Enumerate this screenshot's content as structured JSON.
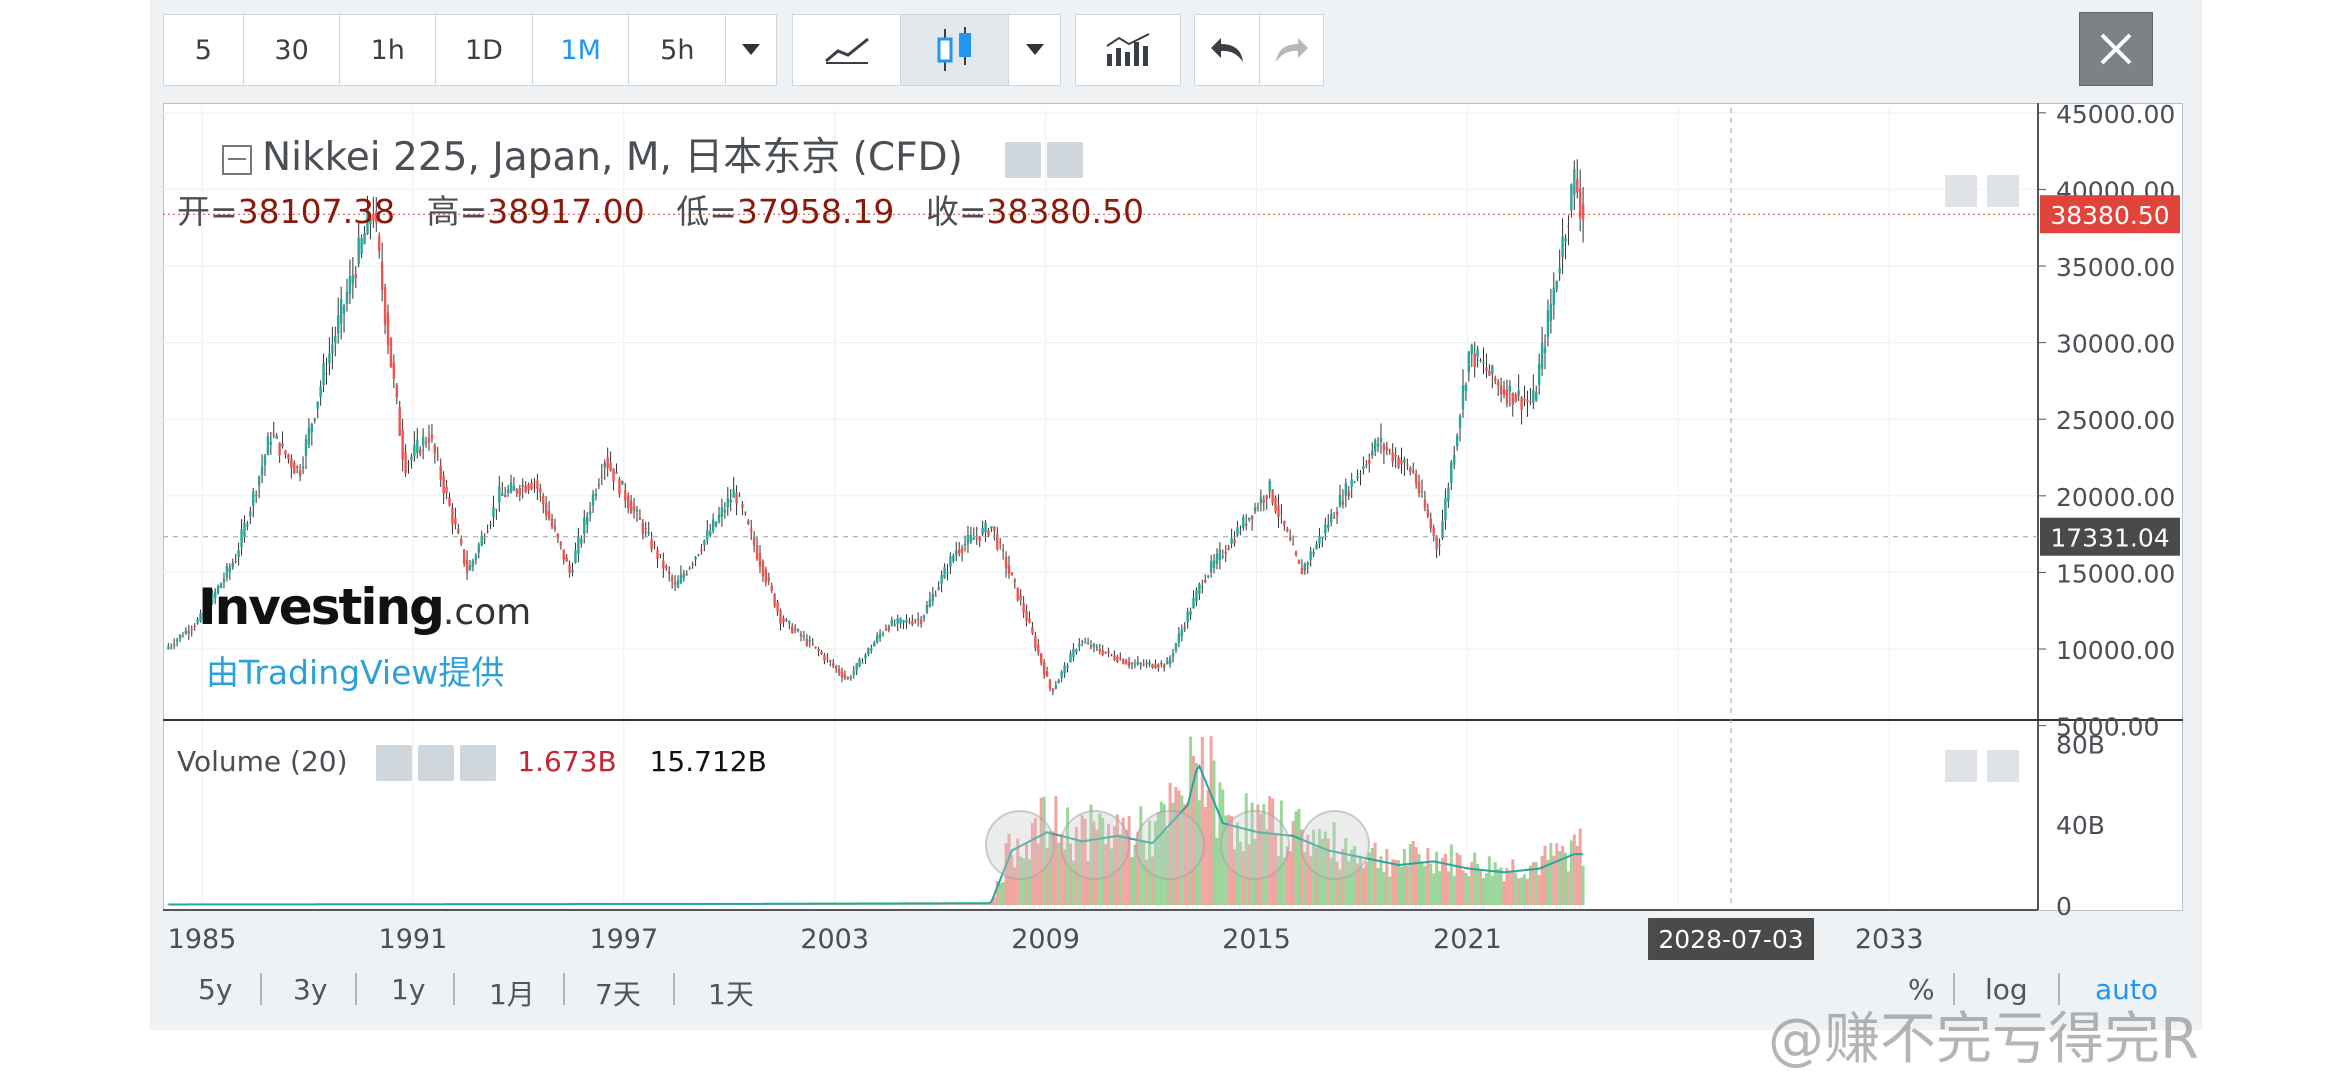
{
  "toolbar": {
    "intervals": [
      "5",
      "30",
      "1h",
      "1D",
      "1M",
      "5h"
    ],
    "active_interval": "1M"
  },
  "legend": {
    "title": "Nikkei 225, Japan, M, 日本东京 (CFD)",
    "open_label": "开=",
    "open": "38107.38",
    "high_label": "高=",
    "high": "38917.00",
    "low_label": "低=",
    "low": "37958.19",
    "close_label": "收=",
    "close": "38380.50"
  },
  "volume_legend": {
    "title": "Volume (20)",
    "value1": "1.673B",
    "value2": "15.712B"
  },
  "branding": {
    "logo_main": "Investing",
    "logo_suffix": ".com",
    "provider": "由TradingView提供"
  },
  "price_badges": {
    "last": "38380.50",
    "crosshair": "17331.04"
  },
  "crosshair_date": "2028-07-03",
  "range_buttons": [
    "5y",
    "3y",
    "1y",
    "1月",
    "7天",
    "1天"
  ],
  "scale_options": [
    "%",
    "log",
    "auto"
  ],
  "watermark": "@赚不完亏得完R",
  "colors": {
    "up": "#26a69a",
    "down": "#ef5350",
    "badge_last": "#e0443a",
    "badge_cross": "#4a4a4a",
    "active": "#2196f3"
  },
  "chart_data": {
    "type": "candlestick",
    "title": "Nikkei 225, Japan, M, 日本东京 (CFD)",
    "x_ticks": [
      "1985",
      "1991",
      "1997",
      "2003",
      "2009",
      "2015",
      "2021",
      "2033"
    ],
    "y_ticks": [
      "45000.00",
      "40000.00",
      "35000.00",
      "30000.00",
      "25000.00",
      "20000.00",
      "15000.00",
      "10000.00",
      "5000.00"
    ],
    "ylim": [
      5000,
      45000
    ],
    "series": [
      {
        "name": "Nikkei 225",
        "points": [
          {
            "x": 1984.0,
            "y": 10000
          },
          {
            "x": 1985.0,
            "y": 12000
          },
          {
            "x": 1986.0,
            "y": 16000
          },
          {
            "x": 1987.0,
            "y": 24000
          },
          {
            "x": 1987.8,
            "y": 21500
          },
          {
            "x": 1988.5,
            "y": 28000
          },
          {
            "x": 1989.9,
            "y": 38900
          },
          {
            "x": 1990.4,
            "y": 29000
          },
          {
            "x": 1990.8,
            "y": 22000
          },
          {
            "x": 1991.5,
            "y": 24000
          },
          {
            "x": 1992.6,
            "y": 15000
          },
          {
            "x": 1993.5,
            "y": 20000
          },
          {
            "x": 1994.5,
            "y": 21000
          },
          {
            "x": 1995.5,
            "y": 15000
          },
          {
            "x": 1996.5,
            "y": 22500
          },
          {
            "x": 1998.5,
            "y": 14000
          },
          {
            "x": 2000.2,
            "y": 20300
          },
          {
            "x": 2001.5,
            "y": 12000
          },
          {
            "x": 2002.5,
            "y": 10000
          },
          {
            "x": 2003.4,
            "y": 8000
          },
          {
            "x": 2004.5,
            "y": 11500
          },
          {
            "x": 2005.5,
            "y": 12000
          },
          {
            "x": 2006.5,
            "y": 16500
          },
          {
            "x": 2007.5,
            "y": 18000
          },
          {
            "x": 2008.5,
            "y": 12000
          },
          {
            "x": 2009.2,
            "y": 7200
          },
          {
            "x": 2010.0,
            "y": 10500
          },
          {
            "x": 2011.5,
            "y": 9000
          },
          {
            "x": 2012.5,
            "y": 9000
          },
          {
            "x": 2013.5,
            "y": 14500
          },
          {
            "x": 2015.4,
            "y": 20500
          },
          {
            "x": 2016.3,
            "y": 15000
          },
          {
            "x": 2017.5,
            "y": 20000
          },
          {
            "x": 2018.5,
            "y": 23500
          },
          {
            "x": 2019.5,
            "y": 21500
          },
          {
            "x": 2020.2,
            "y": 16500
          },
          {
            "x": 2021.1,
            "y": 29500
          },
          {
            "x": 2022.0,
            "y": 27000
          },
          {
            "x": 2022.9,
            "y": 26000
          },
          {
            "x": 2023.5,
            "y": 33500
          },
          {
            "x": 2024.1,
            "y": 40900
          },
          {
            "x": 2024.3,
            "y": 38380
          }
        ]
      }
    ],
    "volume": {
      "name": "Volume (20)",
      "y_ticks": [
        "80B",
        "40B",
        "0"
      ],
      "ylim": [
        0,
        80
      ],
      "points": [
        {
          "x": 1984,
          "y": 0.3
        },
        {
          "x": 2000,
          "y": 0.6
        },
        {
          "x": 2007.4,
          "y": 1.0
        },
        {
          "x": 2008.0,
          "y": 30
        },
        {
          "x": 2009.0,
          "y": 40
        },
        {
          "x": 2010,
          "y": 35
        },
        {
          "x": 2011,
          "y": 38
        },
        {
          "x": 2012,
          "y": 34
        },
        {
          "x": 2013,
          "y": 55
        },
        {
          "x": 2013.3,
          "y": 78
        },
        {
          "x": 2014,
          "y": 45
        },
        {
          "x": 2015,
          "y": 40
        },
        {
          "x": 2016,
          "y": 38
        },
        {
          "x": 2017,
          "y": 30
        },
        {
          "x": 2018,
          "y": 26
        },
        {
          "x": 2019,
          "y": 22
        },
        {
          "x": 2020,
          "y": 24
        },
        {
          "x": 2021,
          "y": 20
        },
        {
          "x": 2022,
          "y": 18
        },
        {
          "x": 2023,
          "y": 20
        },
        {
          "x": 2024,
          "y": 28
        }
      ]
    }
  }
}
